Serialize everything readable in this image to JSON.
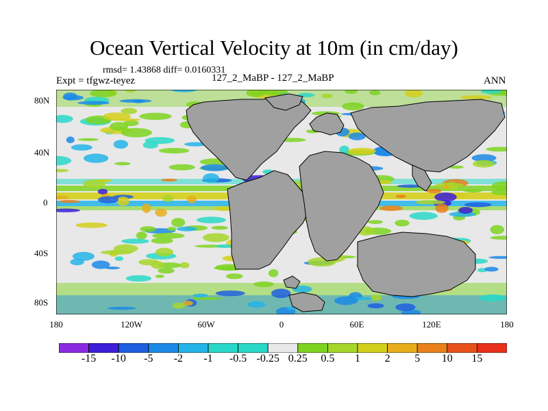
{
  "title": "Ocean Vertical Velocity at 10m (in cm/day)",
  "stats": "rmsd= 1.43868 diff= 0.0160331",
  "expt": "Expt = tfgwz-teyez",
  "case_label": "127_2_MaBP - 127_2_MaBP",
  "season": "ANN",
  "colors": {
    "land": "#a0a0a0",
    "neutral": "#e8e8e8",
    "palette": [
      "#8a2be2",
      "#3d1fd8",
      "#1f5fe0",
      "#1c8ae6",
      "#24b4e8",
      "#2ad8c8",
      "#e8e8e8",
      "#7ed321",
      "#a7d62a",
      "#d4cf1c",
      "#e8ad1c",
      "#e8801c",
      "#e8521c",
      "#e8301c"
    ]
  },
  "y_axis_labels": [
    "80N",
    "40N",
    "0",
    "40S",
    "80S"
  ],
  "x_axis_labels": [
    "180",
    "120W",
    "60W",
    "0",
    "60E",
    "120E",
    "180"
  ],
  "colorbar_labels": [
    "-15",
    "-10",
    "-5",
    "-2",
    "-1",
    "-0.5",
    "-0.25",
    "0.25",
    "0.5",
    "1",
    "2",
    "5",
    "10",
    "15"
  ]
}
